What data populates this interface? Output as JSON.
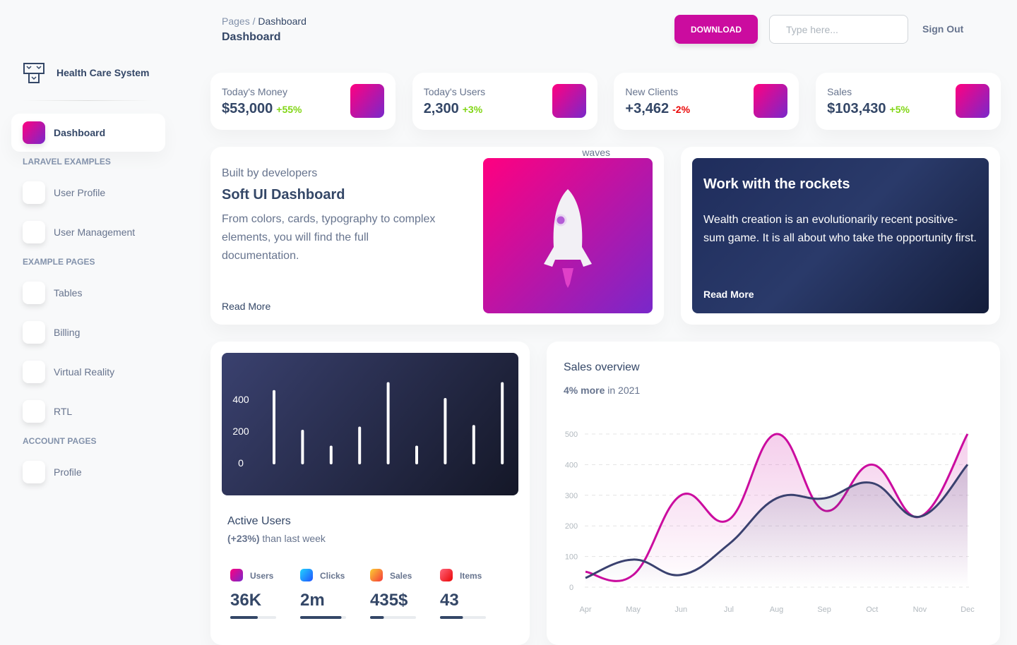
{
  "breadcrumb": {
    "parent": "Pages",
    "current": "Dashboard"
  },
  "page_title": "Dashboard",
  "navbar": {
    "download": "DOWNLOAD",
    "search_placeholder": "Type here...",
    "sign_out": "Sign Out"
  },
  "sidebar": {
    "brand": "Health Care System",
    "active_item": "Dashboard",
    "sections": [
      {
        "title": "LARAVEL EXAMPLES",
        "items": [
          "User Profile",
          "User Management"
        ]
      },
      {
        "title": "EXAMPLE PAGES",
        "items": [
          "Tables",
          "Billing",
          "Virtual Reality",
          "RTL"
        ]
      },
      {
        "title": "ACCOUNT PAGES",
        "items": [
          "Profile"
        ]
      }
    ]
  },
  "stats": [
    {
      "label": "Today's Money",
      "value": "$53,000",
      "change": "+55%"
    },
    {
      "label": "Today's Users",
      "value": "2,300",
      "change": "+3%"
    },
    {
      "label": "New Clients",
      "value": "+3,462",
      "change": "-2%"
    },
    {
      "label": "Sales",
      "value": "$103,430",
      "change": "+5%"
    }
  ],
  "cards": [
    {
      "kicker": "Built by developers",
      "title": "Soft UI Dashboard",
      "text": "From colors, cards, typography to complex elements, you will find the full documentation.",
      "link": "Read More",
      "image_alt": "waves"
    },
    {
      "title": "Work with the rockets",
      "text": "Wealth creation is an evolutionarily recent positive-sum game. It is all about who take the opportunity first.",
      "link": "Read More"
    }
  ],
  "chart_data": [
    {
      "type": "bar",
      "title": "Active Users",
      "subtitle_highlight": "(+23%)",
      "subtitle": "than last week",
      "values": [
        450,
        200,
        100,
        220,
        500,
        100,
        400,
        230,
        500
      ],
      "color": "#ffffff",
      "ylim": [
        0,
        500
      ],
      "yticks": [
        0,
        200,
        400
      ],
      "stats": [
        {
          "label": "Users",
          "value": "36K",
          "progress": 60
        },
        {
          "label": "Clicks",
          "value": "2m",
          "progress": 90
        },
        {
          "label": "Sales",
          "value": "435$",
          "progress": 30
        },
        {
          "label": "Items",
          "value": "43",
          "progress": 50
        }
      ]
    },
    {
      "type": "line",
      "title": "Sales overview",
      "subtitle_highlight": "4% more",
      "subtitle": "in 2021",
      "categories": [
        "Apr",
        "May",
        "Jun",
        "Jul",
        "Aug",
        "Sep",
        "Oct",
        "Nov",
        "Dec"
      ],
      "series": [
        {
          "color": "#cb0c9f",
          "values": [
            50,
            40,
            300,
            220,
            500,
            250,
            400,
            230,
            500
          ]
        },
        {
          "color": "#3a416f",
          "values": [
            30,
            90,
            40,
            140,
            290,
            290,
            340,
            230,
            400
          ]
        }
      ],
      "ylim": [
        0,
        500
      ],
      "yticks": [
        0,
        100,
        200,
        300,
        400,
        500
      ],
      "grid": true
    }
  ]
}
